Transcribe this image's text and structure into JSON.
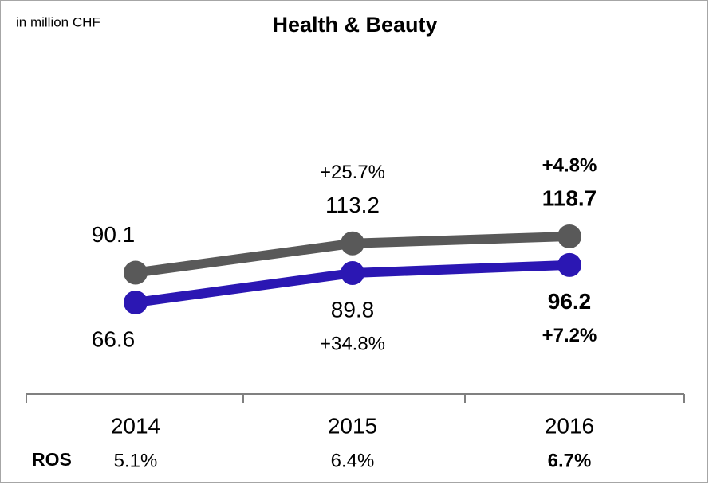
{
  "chart_data": {
    "type": "line",
    "title": "Health & Beauty",
    "unit": "in million CHF",
    "categories": [
      "2014",
      "2015",
      "2016"
    ],
    "series": [
      {
        "color": "#595959",
        "values": [
          90.1,
          113.2,
          118.7
        ],
        "growth_labels": [
          null,
          "+25.7%",
          "+4.8%"
        ]
      },
      {
        "color": "#2b17b3",
        "values": [
          66.6,
          89.8,
          96.2
        ],
        "growth_labels": [
          null,
          "+34.8%",
          "+7.2%"
        ]
      }
    ],
    "ros_label": "ROS",
    "ros_values": [
      5.1,
      6.4,
      6.7
    ],
    "ros_value_labels": [
      "5.1%",
      "6.4%",
      "6.7%"
    ]
  }
}
